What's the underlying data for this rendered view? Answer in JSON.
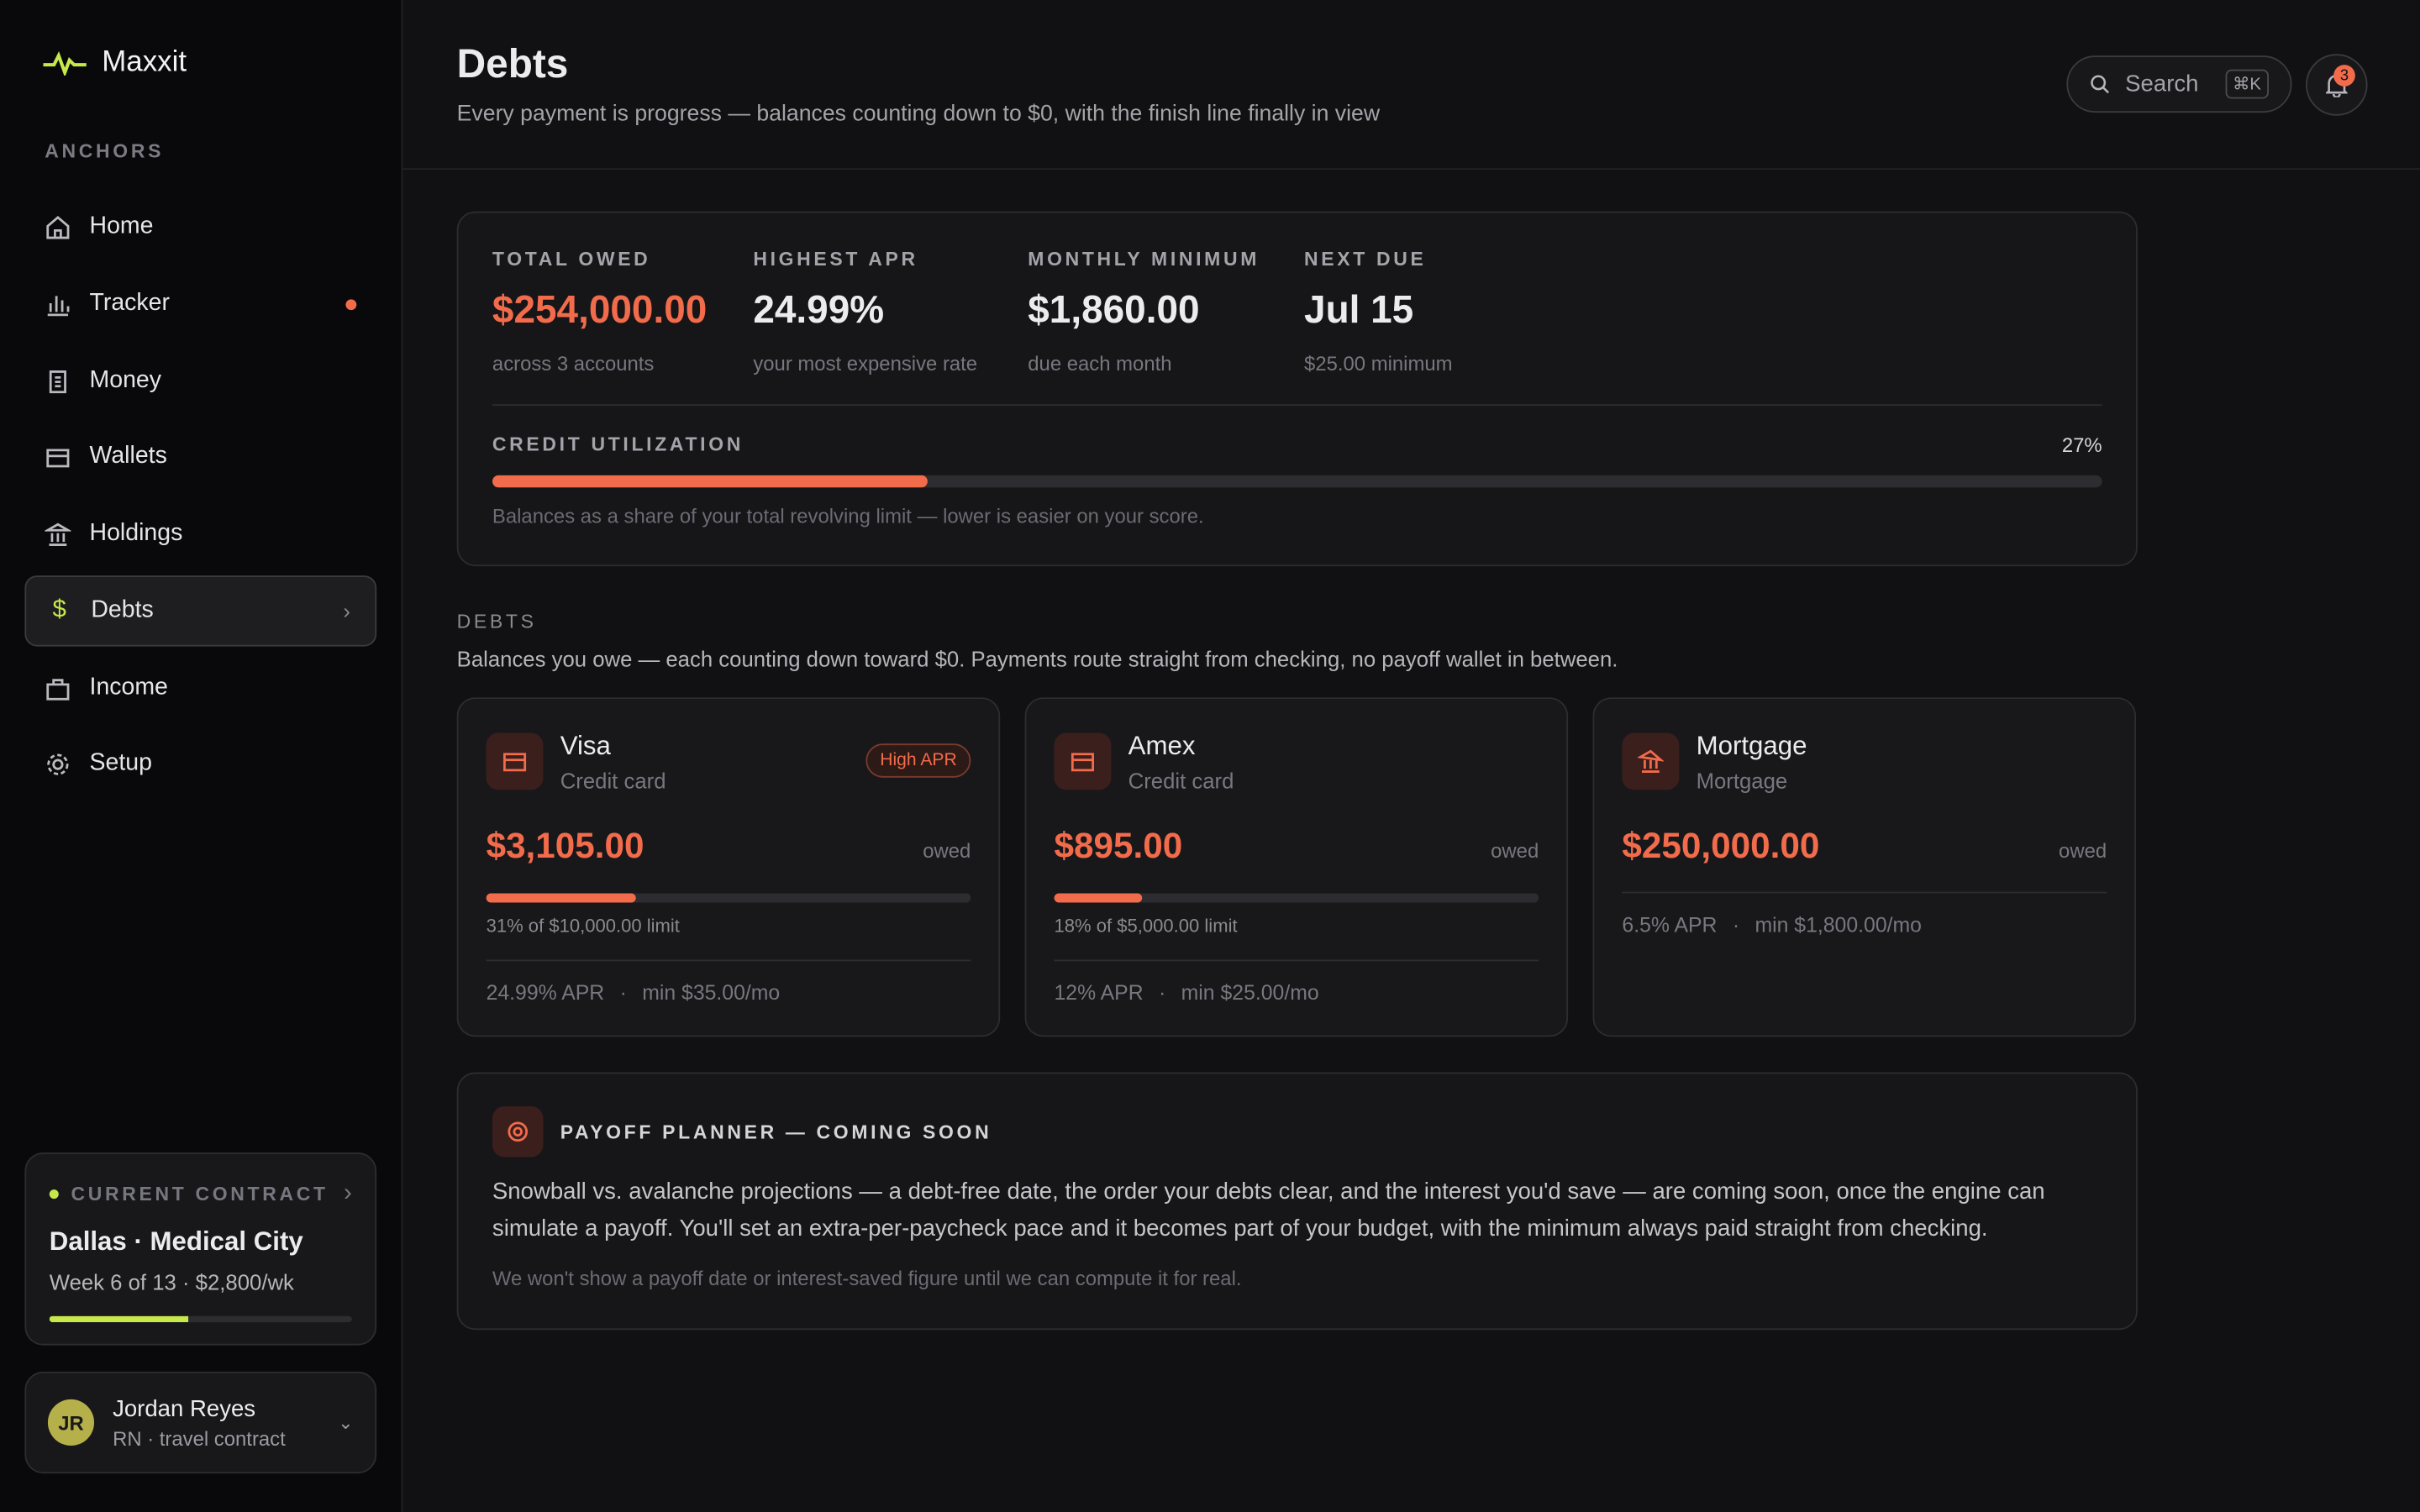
{
  "brand": "Maxxit",
  "sidebar": {
    "section": "ANCHORS",
    "nav": [
      "Home",
      "Tracker",
      "Money",
      "Wallets",
      "Holdings",
      "Debts",
      "Income",
      "Setup"
    ],
    "contract": {
      "label": "CURRENT CONTRACT",
      "title": "Dallas · Medical City",
      "detail": "Week 6 of 13 · $2,800/wk"
    },
    "user": {
      "initials": "JR",
      "name": "Jordan Reyes",
      "role": "RN · travel contract"
    }
  },
  "header": {
    "title": "Debts",
    "subtitle": "Every payment is progress — balances counting down to $0, with the finish line finally in view",
    "search": "Search",
    "shortcut": "⌘K",
    "notifications": 3
  },
  "summary": {
    "stats": [
      {
        "label": "TOTAL OWED",
        "value": "$254,000.00",
        "note": "across 3 accounts"
      },
      {
        "label": "HIGHEST APR",
        "value": "24.99%",
        "note": "your most expensive rate"
      },
      {
        "label": "MONTHLY MINIMUM",
        "value": "$1,860.00",
        "note": "due each month"
      },
      {
        "label": "NEXT DUE",
        "value": "Jul 15",
        "note": "$25.00 minimum"
      }
    ],
    "utilization": {
      "label": "CREDIT UTILIZATION",
      "percent": {
        "value": 27,
        "label": "27%"
      },
      "note": "Balances as a share of your total revolving limit — lower is easier on your score."
    }
  },
  "debts": {
    "label": "DEBTS",
    "description": "Balances you owe — each counting down toward $0. Payments route straight from checking, no payoff wallet in between.",
    "cards": [
      {
        "name": "Visa",
        "type": "Credit card",
        "badge": "High APR",
        "amount": "$3,105.00",
        "owed": "owed",
        "usage": {
          "value": 31,
          "label": "31% of $10,000.00 limit"
        },
        "apr": "24.99% APR",
        "min": "min $35.00/mo"
      },
      {
        "name": "Amex",
        "type": "Credit card",
        "amount": "$895.00",
        "owed": "owed",
        "usage": {
          "value": 18,
          "label": "18% of $5,000.00 limit"
        },
        "apr": "12% APR",
        "min": "min $25.00/mo"
      },
      {
        "name": "Mortgage",
        "type": "Mortgage",
        "amount": "$250,000.00",
        "owed": "owed",
        "apr": "6.5% APR",
        "min": "min $1,800.00/mo"
      }
    ]
  },
  "planner": {
    "title": "PAYOFF PLANNER — COMING SOON",
    "body": "Snowball vs. avalanche projections — a debt-free date, the order your debts clear, and the interest you'd save — are coming soon, once the engine can simulate a payoff. You'll set an extra-per-paycheck pace and it becomes part of your budget, with the minimum always paid straight from checking.",
    "note": "We won't show a payoff date or interest-saved figure until we can compute it for real."
  }
}
